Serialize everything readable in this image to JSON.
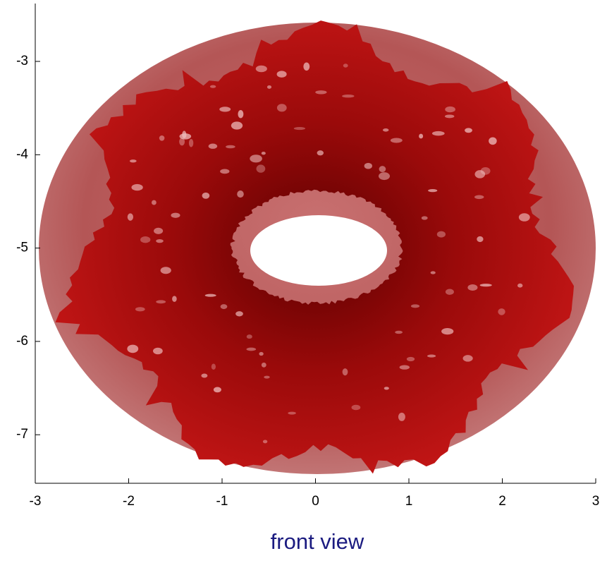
{
  "chart_data": {
    "type": "surface",
    "caption": "front view",
    "xlim": [
      -3,
      3
    ],
    "xticks": [
      -3,
      -2,
      -1,
      0,
      1,
      2,
      3
    ],
    "ylim": [
      -7.52,
      -2.38
    ],
    "yticks": [
      -3,
      -4,
      -5,
      -6,
      -7
    ]
  }
}
